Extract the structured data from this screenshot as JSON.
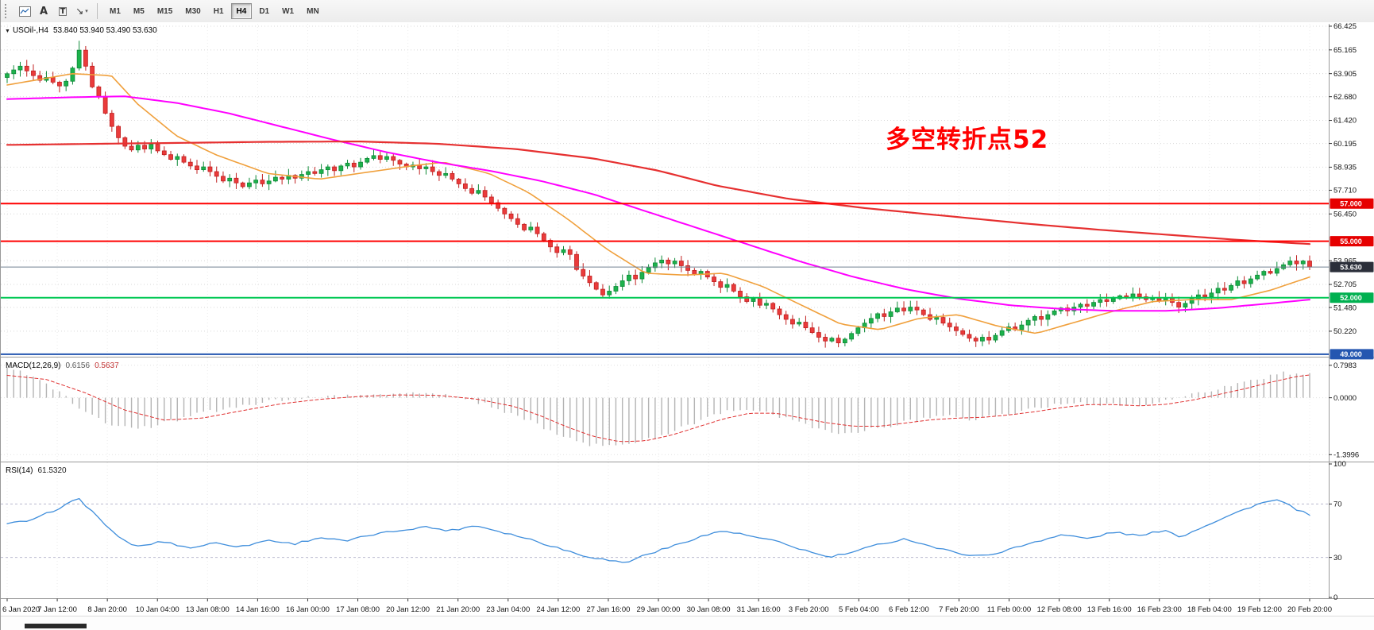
{
  "toolbar": {
    "tools": [
      {
        "name": "chart-window",
        "glyph": ""
      },
      {
        "name": "annotate-text",
        "glyph": "A"
      },
      {
        "name": "text-label",
        "glyph": "T"
      },
      {
        "name": "draw-arrow",
        "glyph": "↘",
        "caret": "▾"
      }
    ],
    "timeframes": [
      "M1",
      "M5",
      "M15",
      "M30",
      "H1",
      "H4",
      "D1",
      "W1",
      "MN"
    ],
    "active_timeframe": "H4"
  },
  "main_chart": {
    "symbol_line": {
      "marker": "▼",
      "symbol": "USOil-,H4",
      "ohlc": "53.840 53.940 53.490 53.630"
    },
    "annotation": {
      "text": "多空转折点52",
      "color": "#ff0000"
    },
    "price_axis": {
      "ticks": [
        "66.425",
        "65.165",
        "63.905",
        "62.680",
        "61.420",
        "60.195",
        "58.935",
        "57.710",
        "56.450",
        "53.965",
        "52.705",
        "51.480",
        "50.220"
      ],
      "badges": [
        {
          "label": "57.000",
          "price": 57.0,
          "bg": "#e60000"
        },
        {
          "label": "55.000",
          "price": 55.0,
          "bg": "#e60000"
        },
        {
          "label": "53.630",
          "price": 53.63,
          "bg": "#2b2f3a",
          "current": true
        },
        {
          "label": "52.000",
          "price": 52.0,
          "bg": "#00b050"
        },
        {
          "label": "49.000",
          "price": 49.0,
          "bg": "#2456b0"
        }
      ]
    },
    "hlines": [
      {
        "price": 57.0,
        "color": "#ff0000",
        "width": 2
      },
      {
        "price": 55.0,
        "color": "#ff0000",
        "width": 2
      },
      {
        "price": 53.63,
        "color": "#708090",
        "width": 1
      },
      {
        "price": 52.0,
        "color": "#00c853",
        "width": 2
      },
      {
        "price": 49.0,
        "color": "#2456b0",
        "width": 2
      }
    ],
    "time_axis": [
      "6 Jan 2020",
      "7 Jan 12:00",
      "8 Jan 20:00",
      "10 Jan 04:00",
      "13 Jan 08:00",
      "14 Jan 16:00",
      "16 Jan 00:00",
      "17 Jan 08:00",
      "20 Jan 12:00",
      "21 Jan 20:00",
      "23 Jan 04:00",
      "24 Jan 12:00",
      "27 Jan 16:00",
      "29 Jan 00:00",
      "30 Jan 08:00",
      "31 Jan 16:00",
      "3 Feb 20:00",
      "5 Feb 04:00",
      "6 Feb 12:00",
      "7 Feb 20:00",
      "11 Feb 00:00",
      "12 Feb 08:00",
      "13 Feb 16:00",
      "16 Feb 23:00",
      "18 Feb 04:00",
      "19 Feb 12:00",
      "20 Feb 20:00"
    ]
  },
  "chart_data": {
    "type": "candlestick",
    "symbol": "USOil-",
    "timeframe": "H4",
    "title": "USOil-,H4",
    "price_range": [
      48.95,
      66.55
    ],
    "first_open": 63.7,
    "closes": [
      63.9,
      64.1,
      64.3,
      64.05,
      63.8,
      63.55,
      63.7,
      63.45,
      63.25,
      63.5,
      64.2,
      65.15,
      64.3,
      63.2,
      62.7,
      61.8,
      61.1,
      60.5,
      60.05,
      59.85,
      60.1,
      59.9,
      60.15,
      59.8,
      59.6,
      59.35,
      59.5,
      59.2,
      59.0,
      58.8,
      58.95,
      58.7,
      58.45,
      58.2,
      58.35,
      58.1,
      57.9,
      58.1,
      58.25,
      58.05,
      58.2,
      58.4,
      58.3,
      58.5,
      58.35,
      58.55,
      58.7,
      58.6,
      58.8,
      58.95,
      58.75,
      59.0,
      59.15,
      58.95,
      59.2,
      59.4,
      59.55,
      59.35,
      59.5,
      59.3,
      59.1,
      58.95,
      59.05,
      58.85,
      58.95,
      58.7,
      58.5,
      58.6,
      58.3,
      58.05,
      57.8,
      57.55,
      57.7,
      57.35,
      57.05,
      56.75,
      56.45,
      56.2,
      55.9,
      55.6,
      55.75,
      55.4,
      55.05,
      54.7,
      54.4,
      54.55,
      54.3,
      53.5,
      53.15,
      52.8,
      52.45,
      52.15,
      52.35,
      52.6,
      52.9,
      53.2,
      53.0,
      53.35,
      53.6,
      53.85,
      54.0,
      53.8,
      53.95,
      53.7,
      53.45,
      53.25,
      53.4,
      53.1,
      52.85,
      52.55,
      52.7,
      52.35,
      52.05,
      51.8,
      51.95,
      51.6,
      51.7,
      51.4,
      51.1,
      50.85,
      50.6,
      50.7,
      50.4,
      50.15,
      49.9,
      49.7,
      49.85,
      49.6,
      49.8,
      50.1,
      50.4,
      50.65,
      50.9,
      51.15,
      51.0,
      51.25,
      51.45,
      51.3,
      51.5,
      51.35,
      51.1,
      50.85,
      50.95,
      50.65,
      50.45,
      50.25,
      50.05,
      49.85,
      49.7,
      49.9,
      49.75,
      50.0,
      50.25,
      50.45,
      50.3,
      50.55,
      50.8,
      51.0,
      50.85,
      51.1,
      51.3,
      51.45,
      51.3,
      51.5,
      51.65,
      51.55,
      51.75,
      51.9,
      51.8,
      51.95,
      52.1,
      52.0,
      52.2,
      52.05,
      51.9,
      52.0,
      51.85,
      52.0,
      51.75,
      51.5,
      51.7,
      51.95,
      52.15,
      52.05,
      52.25,
      52.5,
      52.4,
      52.65,
      52.9,
      52.75,
      53.0,
      53.2,
      53.4,
      53.3,
      53.55,
      53.75,
      53.95,
      53.8,
      53.95,
      53.63
    ],
    "spike_high": {
      "index": 11,
      "high": 65.65
    },
    "moving_averages": [
      {
        "name": "ma-fast",
        "color": "#f0a03c",
        "width": 1.6,
        "points": [
          [
            0,
            63.3
          ],
          [
            0.05,
            63.9
          ],
          [
            0.08,
            63.8
          ],
          [
            0.1,
            62.3
          ],
          [
            0.13,
            60.6
          ],
          [
            0.16,
            59.6
          ],
          [
            0.2,
            58.6
          ],
          [
            0.24,
            58.3
          ],
          [
            0.28,
            58.7
          ],
          [
            0.31,
            59.0
          ],
          [
            0.335,
            59.2
          ],
          [
            0.37,
            58.6
          ],
          [
            0.4,
            57.6
          ],
          [
            0.43,
            56.2
          ],
          [
            0.46,
            54.6
          ],
          [
            0.49,
            53.3
          ],
          [
            0.52,
            53.2
          ],
          [
            0.55,
            53.3
          ],
          [
            0.58,
            52.6
          ],
          [
            0.61,
            51.6
          ],
          [
            0.64,
            50.6
          ],
          [
            0.67,
            50.3
          ],
          [
            0.7,
            50.9
          ],
          [
            0.73,
            51.1
          ],
          [
            0.76,
            50.5
          ],
          [
            0.79,
            50.1
          ],
          [
            0.82,
            50.7
          ],
          [
            0.85,
            51.3
          ],
          [
            0.88,
            51.8
          ],
          [
            0.91,
            51.9
          ],
          [
            0.94,
            51.9
          ],
          [
            0.97,
            52.4
          ],
          [
            1,
            53.1
          ]
        ]
      },
      {
        "name": "ma-mid",
        "color": "#ff00ff",
        "width": 2,
        "points": [
          [
            0,
            62.55
          ],
          [
            0.05,
            62.65
          ],
          [
            0.09,
            62.7
          ],
          [
            0.13,
            62.35
          ],
          [
            0.17,
            61.8
          ],
          [
            0.21,
            61.1
          ],
          [
            0.25,
            60.4
          ],
          [
            0.29,
            59.75
          ],
          [
            0.33,
            59.2
          ],
          [
            0.37,
            58.75
          ],
          [
            0.41,
            58.2
          ],
          [
            0.45,
            57.5
          ],
          [
            0.49,
            56.6
          ],
          [
            0.53,
            55.7
          ],
          [
            0.57,
            54.8
          ],
          [
            0.61,
            53.9
          ],
          [
            0.65,
            53.1
          ],
          [
            0.69,
            52.45
          ],
          [
            0.73,
            51.95
          ],
          [
            0.77,
            51.6
          ],
          [
            0.81,
            51.4
          ],
          [
            0.85,
            51.3
          ],
          [
            0.89,
            51.3
          ],
          [
            0.93,
            51.45
          ],
          [
            0.97,
            51.7
          ],
          [
            1,
            51.9
          ]
        ]
      },
      {
        "name": "ma-slow",
        "color": "#e63030",
        "width": 2.2,
        "points": [
          [
            0,
            60.12
          ],
          [
            0.1,
            60.2
          ],
          [
            0.2,
            60.28
          ],
          [
            0.27,
            60.3
          ],
          [
            0.33,
            60.18
          ],
          [
            0.39,
            59.9
          ],
          [
            0.45,
            59.4
          ],
          [
            0.5,
            58.75
          ],
          [
            0.545,
            57.95
          ],
          [
            0.6,
            57.25
          ],
          [
            0.66,
            56.75
          ],
          [
            0.72,
            56.35
          ],
          [
            0.78,
            55.95
          ],
          [
            0.84,
            55.6
          ],
          [
            0.9,
            55.3
          ],
          [
            0.95,
            55.05
          ],
          [
            1,
            54.85
          ]
        ]
      }
    ],
    "macd": {
      "label": "MACD(12,26,9)",
      "value_main": "0.6156",
      "value_signal": "0.5637",
      "scale_ticks": [
        "0.7983",
        "0.0000",
        "-1.3996"
      ],
      "scale_values": [
        0.7983,
        0,
        -1.3996
      ],
      "range": [
        -1.55,
        0.95
      ],
      "hist_color": "#b4b4b4",
      "signal_color": "#e03030",
      "main_points": [
        [
          0,
          0.7
        ],
        [
          0.02,
          0.55
        ],
        [
          0.04,
          0.15
        ],
        [
          0.06,
          -0.35
        ],
        [
          0.08,
          -0.65
        ],
        [
          0.1,
          -0.78
        ],
        [
          0.12,
          -0.62
        ],
        [
          0.15,
          -0.38
        ],
        [
          0.18,
          -0.18
        ],
        [
          0.21,
          -0.05
        ],
        [
          0.24,
          0.02
        ],
        [
          0.27,
          0.08
        ],
        [
          0.3,
          0.12
        ],
        [
          0.33,
          0.08
        ],
        [
          0.35,
          -0.02
        ],
        [
          0.37,
          -0.18
        ],
        [
          0.4,
          -0.55
        ],
        [
          0.42,
          -0.85
        ],
        [
          0.44,
          -1.1
        ],
        [
          0.46,
          -1.22
        ],
        [
          0.48,
          -1.15
        ],
        [
          0.5,
          -0.95
        ],
        [
          0.52,
          -0.7
        ],
        [
          0.54,
          -0.45
        ],
        [
          0.56,
          -0.28
        ],
        [
          0.58,
          -0.32
        ],
        [
          0.6,
          -0.55
        ],
        [
          0.62,
          -0.75
        ],
        [
          0.64,
          -0.85
        ],
        [
          0.66,
          -0.8
        ],
        [
          0.68,
          -0.68
        ],
        [
          0.7,
          -0.52
        ],
        [
          0.72,
          -0.45
        ],
        [
          0.74,
          -0.52
        ],
        [
          0.76,
          -0.45
        ],
        [
          0.78,
          -0.32
        ],
        [
          0.8,
          -0.2
        ],
        [
          0.82,
          -0.12
        ],
        [
          0.84,
          -0.16
        ],
        [
          0.86,
          -0.22
        ],
        [
          0.88,
          -0.14
        ],
        [
          0.9,
          0.0
        ],
        [
          0.92,
          0.15
        ],
        [
          0.94,
          0.32
        ],
        [
          0.96,
          0.48
        ],
        [
          0.98,
          0.6
        ],
        [
          1,
          0.62
        ]
      ],
      "signal_points": [
        [
          0,
          0.55
        ],
        [
          0.03,
          0.45
        ],
        [
          0.06,
          0.12
        ],
        [
          0.09,
          -0.3
        ],
        [
          0.12,
          -0.55
        ],
        [
          0.15,
          -0.5
        ],
        [
          0.18,
          -0.32
        ],
        [
          0.21,
          -0.15
        ],
        [
          0.24,
          -0.04
        ],
        [
          0.27,
          0.03
        ],
        [
          0.3,
          0.07
        ],
        [
          0.33,
          0.06
        ],
        [
          0.36,
          -0.03
        ],
        [
          0.39,
          -0.22
        ],
        [
          0.41,
          -0.45
        ],
        [
          0.43,
          -0.72
        ],
        [
          0.45,
          -0.95
        ],
        [
          0.47,
          -1.08
        ],
        [
          0.49,
          -1.06
        ],
        [
          0.51,
          -0.92
        ],
        [
          0.53,
          -0.72
        ],
        [
          0.55,
          -0.52
        ],
        [
          0.57,
          -0.38
        ],
        [
          0.59,
          -0.38
        ],
        [
          0.61,
          -0.5
        ],
        [
          0.63,
          -0.62
        ],
        [
          0.65,
          -0.7
        ],
        [
          0.67,
          -0.7
        ],
        [
          0.69,
          -0.62
        ],
        [
          0.71,
          -0.54
        ],
        [
          0.73,
          -0.5
        ],
        [
          0.75,
          -0.48
        ],
        [
          0.77,
          -0.42
        ],
        [
          0.79,
          -0.34
        ],
        [
          0.81,
          -0.24
        ],
        [
          0.83,
          -0.17
        ],
        [
          0.85,
          -0.17
        ],
        [
          0.87,
          -0.2
        ],
        [
          0.89,
          -0.16
        ],
        [
          0.91,
          -0.06
        ],
        [
          0.93,
          0.08
        ],
        [
          0.95,
          0.22
        ],
        [
          0.97,
          0.38
        ],
        [
          0.99,
          0.52
        ],
        [
          1,
          0.56
        ]
      ]
    },
    "rsi": {
      "label": "RSI(14)",
      "value": "61.5320",
      "scale_ticks": [
        "100",
        "70",
        "30",
        "0"
      ],
      "scale_values": [
        100,
        70,
        30,
        0
      ],
      "levels": [
        70,
        30
      ],
      "range": [
        0,
        100
      ],
      "line_color": "#3f8edc",
      "points": [
        [
          0,
          55
        ],
        [
          0.02,
          58
        ],
        [
          0.055,
          74
        ],
        [
          0.07,
          60
        ],
        [
          0.085,
          45
        ],
        [
          0.1,
          38
        ],
        [
          0.12,
          42
        ],
        [
          0.14,
          37
        ],
        [
          0.16,
          41
        ],
        [
          0.18,
          38
        ],
        [
          0.2,
          43
        ],
        [
          0.22,
          40
        ],
        [
          0.24,
          45
        ],
        [
          0.26,
          42
        ],
        [
          0.28,
          47
        ],
        [
          0.3,
          50
        ],
        [
          0.32,
          53
        ],
        [
          0.34,
          50
        ],
        [
          0.36,
          54
        ],
        [
          0.38,
          49
        ],
        [
          0.4,
          44
        ],
        [
          0.42,
          38
        ],
        [
          0.44,
          32
        ],
        [
          0.46,
          28
        ],
        [
          0.475,
          26
        ],
        [
          0.49,
          32
        ],
        [
          0.51,
          38
        ],
        [
          0.53,
          45
        ],
        [
          0.55,
          50
        ],
        [
          0.57,
          46
        ],
        [
          0.59,
          42
        ],
        [
          0.61,
          36
        ],
        [
          0.63,
          30
        ],
        [
          0.65,
          34
        ],
        [
          0.67,
          40
        ],
        [
          0.69,
          44
        ],
        [
          0.71,
          38
        ],
        [
          0.73,
          33
        ],
        [
          0.75,
          31
        ],
        [
          0.77,
          36
        ],
        [
          0.79,
          42
        ],
        [
          0.81,
          47
        ],
        [
          0.83,
          44
        ],
        [
          0.85,
          49
        ],
        [
          0.87,
          46
        ],
        [
          0.89,
          51
        ],
        [
          0.9,
          45
        ],
        [
          0.92,
          54
        ],
        [
          0.94,
          62
        ],
        [
          0.96,
          70
        ],
        [
          0.975,
          73
        ],
        [
          0.99,
          66
        ],
        [
          1,
          61.5
        ]
      ]
    }
  },
  "colors": {
    "up": "#1cb24b",
    "up_border": "#0e8a38",
    "down": "#ea3b3b",
    "down_border": "#c02020",
    "grid": "#d8d8d8",
    "vgrid": "#ececec",
    "bg": "#ffffff",
    "axis_text": "#111111"
  }
}
